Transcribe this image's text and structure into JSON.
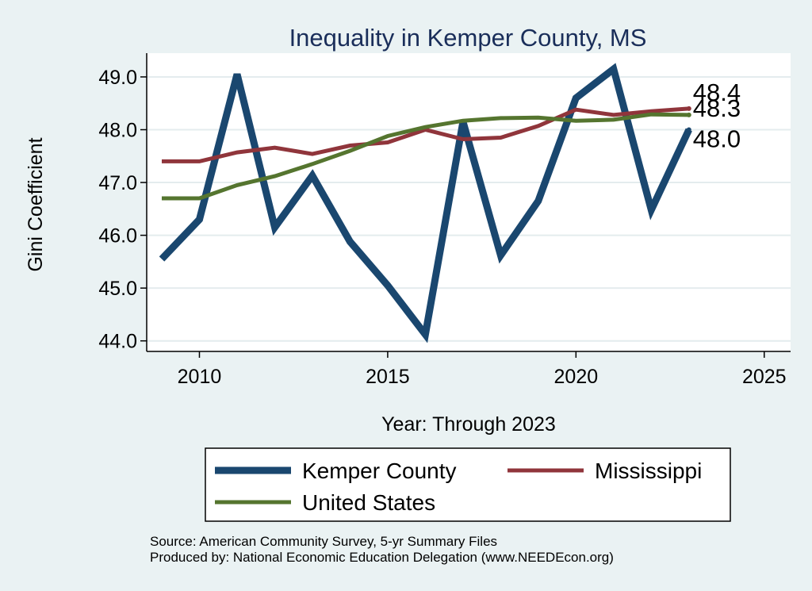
{
  "chart_data": {
    "type": "line",
    "title": "Inequality in Kemper County, MS",
    "xlabel": "Year: Through 2023",
    "ylabel": "Gini Coefficient",
    "xlim": [
      2008.6,
      2025.7
    ],
    "ylim": [
      43.8,
      49.45
    ],
    "x_ticks": [
      {
        "value": 2010,
        "label": "2010"
      },
      {
        "value": 2015,
        "label": "2015"
      },
      {
        "value": 2020,
        "label": "2020"
      },
      {
        "value": 2025,
        "label": "2025"
      }
    ],
    "y_ticks": [
      {
        "value": 44,
        "label": "44.0"
      },
      {
        "value": 45,
        "label": "45.0"
      },
      {
        "value": 46,
        "label": "46.0"
      },
      {
        "value": 47,
        "label": "47.0"
      },
      {
        "value": 48,
        "label": "48.0"
      },
      {
        "value": 49,
        "label": "49.0"
      }
    ],
    "grid": true,
    "legend_position": "bottom",
    "x": [
      2009,
      2010,
      2011,
      2012,
      2013,
      2014,
      2015,
      2016,
      2017,
      2018,
      2019,
      2020,
      2021,
      2022,
      2023
    ],
    "series": [
      {
        "name": "Kemper County",
        "color": "#1a476f",
        "values": [
          45.55,
          46.3,
          49.05,
          46.15,
          47.13,
          45.88,
          45.05,
          44.12,
          48.15,
          45.62,
          46.65,
          48.6,
          49.15,
          46.48,
          48.0
        ],
        "end_label": "48.0"
      },
      {
        "name": "Mississippi",
        "color": "#90353b",
        "values": [
          47.4,
          47.4,
          47.57,
          47.66,
          47.54,
          47.7,
          47.76,
          48.0,
          47.82,
          47.85,
          48.07,
          48.38,
          48.28,
          48.35,
          48.4
        ],
        "end_label": "48.4"
      },
      {
        "name": "United States",
        "color": "#55752f",
        "values": [
          46.7,
          46.7,
          46.95,
          47.12,
          47.35,
          47.6,
          47.88,
          48.05,
          48.17,
          48.22,
          48.23,
          48.17,
          48.19,
          48.29,
          48.28
        ],
        "end_label": "48.3"
      }
    ],
    "notes": [
      "Source: American Community Survey, 5-yr Summary Files",
      "Produced by: National Economic Education Delegation (www.NEEDEcon.org)"
    ]
  }
}
